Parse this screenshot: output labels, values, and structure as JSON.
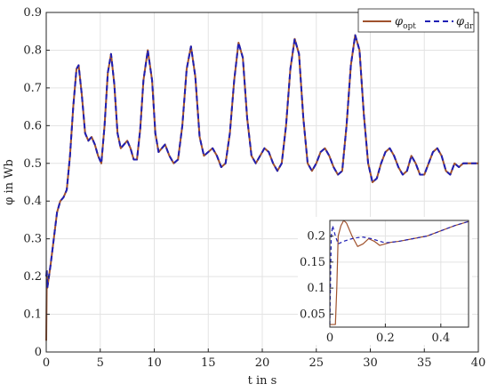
{
  "chart_data": [
    {
      "type": "line",
      "title": "",
      "xlabel": "t in s",
      "ylabel": "φ in Wb",
      "xlim": [
        0,
        40
      ],
      "ylim": [
        0,
        0.9
      ],
      "xticks": [
        "0",
        "5",
        "10",
        "15",
        "20",
        "25",
        "30",
        "35",
        "40"
      ],
      "yticks": [
        "0",
        "0.1",
        "0.2",
        "0.3",
        "0.4",
        "0.5",
        "0.6",
        "0.7",
        "0.8",
        "0.9"
      ],
      "grid": true,
      "legend_position": "top-right",
      "legend": [
        {
          "symbol": "φ",
          "subscript": "opt",
          "style": "solid",
          "color": "#A0522D"
        },
        {
          "symbol": "φ",
          "subscript": "dr",
          "style": "dashed",
          "color": "#1F1FB4"
        }
      ],
      "series": [
        {
          "style": "solid",
          "color": "#A0522D",
          "x": [
            0,
            0.05,
            0.1,
            0.2,
            0.4,
            0.7,
            1.0,
            1.3,
            1.6,
            1.9,
            2.2,
            2.5,
            2.8,
            3.0,
            3.3,
            3.6,
            3.9,
            4.2,
            4.5,
            4.8,
            5.1,
            5.4,
            5.7,
            6.0,
            6.3,
            6.6,
            6.9,
            7.2,
            7.5,
            7.8,
            8.1,
            8.4,
            8.7,
            9.0,
            9.4,
            9.8,
            10.1,
            10.4,
            10.7,
            11.0,
            11.4,
            11.8,
            12.2,
            12.6,
            13.0,
            13.4,
            13.8,
            14.2,
            14.6,
            15.0,
            15.4,
            15.8,
            16.2,
            16.6,
            17.0,
            17.4,
            17.8,
            18.2,
            18.6,
            19.0,
            19.4,
            19.8,
            20.2,
            20.6,
            21.0,
            21.4,
            21.8,
            22.2,
            22.6,
            23.0,
            23.4,
            23.8,
            24.2,
            24.6,
            25.0,
            25.4,
            25.8,
            26.2,
            26.6,
            27.0,
            27.4,
            27.8,
            28.2,
            28.6,
            29.0,
            29.4,
            29.8,
            30.2,
            30.6,
            31.0,
            31.4,
            31.8,
            32.2,
            32.6,
            33.0,
            33.4,
            33.8,
            34.2,
            34.6,
            35.0,
            35.4,
            35.8,
            36.2,
            36.6,
            37.0,
            37.4,
            37.8,
            38.2,
            38.6,
            39.0,
            39.4,
            39.8,
            40.0
          ],
          "y": [
            0.03,
            0.2,
            0.17,
            0.19,
            0.23,
            0.3,
            0.37,
            0.4,
            0.41,
            0.43,
            0.52,
            0.65,
            0.75,
            0.76,
            0.68,
            0.58,
            0.56,
            0.57,
            0.55,
            0.52,
            0.5,
            0.6,
            0.74,
            0.79,
            0.71,
            0.58,
            0.54,
            0.55,
            0.56,
            0.54,
            0.51,
            0.51,
            0.59,
            0.72,
            0.8,
            0.72,
            0.58,
            0.53,
            0.54,
            0.55,
            0.52,
            0.5,
            0.51,
            0.6,
            0.75,
            0.81,
            0.73,
            0.57,
            0.52,
            0.53,
            0.54,
            0.52,
            0.49,
            0.5,
            0.58,
            0.72,
            0.82,
            0.78,
            0.62,
            0.52,
            0.5,
            0.52,
            0.54,
            0.53,
            0.5,
            0.48,
            0.5,
            0.6,
            0.75,
            0.83,
            0.79,
            0.62,
            0.5,
            0.48,
            0.5,
            0.53,
            0.54,
            0.52,
            0.49,
            0.47,
            0.48,
            0.6,
            0.76,
            0.84,
            0.8,
            0.63,
            0.5,
            0.45,
            0.46,
            0.5,
            0.53,
            0.54,
            0.52,
            0.49,
            0.47,
            0.48,
            0.52,
            0.5,
            0.47,
            0.47,
            0.5,
            0.53,
            0.54,
            0.52,
            0.48,
            0.47,
            0.5,
            0.49,
            0.5,
            0.5,
            0.5,
            0.5,
            0.5
          ]
        },
        {
          "style": "dashed",
          "color": "#1F1FB4",
          "x": [
            0,
            0.05,
            0.1,
            0.2,
            0.4,
            0.7,
            1.0,
            1.3,
            1.6,
            1.9,
            2.2,
            2.5,
            2.8,
            3.0,
            3.3,
            3.6,
            3.9,
            4.2,
            4.5,
            4.8,
            5.1,
            5.4,
            5.7,
            6.0,
            6.3,
            6.6,
            6.9,
            7.2,
            7.5,
            7.8,
            8.1,
            8.4,
            8.7,
            9.0,
            9.4,
            9.8,
            10.1,
            10.4,
            10.7,
            11.0,
            11.4,
            11.8,
            12.2,
            12.6,
            13.0,
            13.4,
            13.8,
            14.2,
            14.6,
            15.0,
            15.4,
            15.8,
            16.2,
            16.6,
            17.0,
            17.4,
            17.8,
            18.2,
            18.6,
            19.0,
            19.4,
            19.8,
            20.2,
            20.6,
            21.0,
            21.4,
            21.8,
            22.2,
            22.6,
            23.0,
            23.4,
            23.8,
            24.2,
            24.6,
            25.0,
            25.4,
            25.8,
            26.2,
            26.6,
            27.0,
            27.4,
            27.8,
            28.2,
            28.6,
            29.0,
            29.4,
            29.8,
            30.2,
            30.6,
            31.0,
            31.4,
            31.8,
            32.2,
            32.6,
            33.0,
            33.4,
            33.8,
            34.2,
            34.6,
            35.0,
            35.4,
            35.8,
            36.2,
            36.6,
            37.0,
            37.4,
            37.8,
            38.2,
            38.6,
            39.0,
            39.4,
            39.8,
            40.0
          ],
          "y": [
            0.2,
            0.22,
            0.17,
            0.19,
            0.23,
            0.3,
            0.37,
            0.4,
            0.41,
            0.43,
            0.52,
            0.65,
            0.75,
            0.76,
            0.68,
            0.58,
            0.56,
            0.57,
            0.55,
            0.52,
            0.5,
            0.6,
            0.74,
            0.79,
            0.71,
            0.58,
            0.54,
            0.55,
            0.56,
            0.54,
            0.51,
            0.51,
            0.59,
            0.72,
            0.8,
            0.72,
            0.58,
            0.53,
            0.54,
            0.55,
            0.52,
            0.5,
            0.51,
            0.6,
            0.75,
            0.81,
            0.73,
            0.57,
            0.52,
            0.53,
            0.54,
            0.52,
            0.49,
            0.5,
            0.58,
            0.72,
            0.82,
            0.78,
            0.62,
            0.52,
            0.5,
            0.52,
            0.54,
            0.53,
            0.5,
            0.48,
            0.5,
            0.6,
            0.75,
            0.83,
            0.79,
            0.62,
            0.5,
            0.48,
            0.5,
            0.53,
            0.54,
            0.52,
            0.49,
            0.47,
            0.48,
            0.6,
            0.76,
            0.84,
            0.8,
            0.63,
            0.5,
            0.45,
            0.46,
            0.5,
            0.53,
            0.54,
            0.52,
            0.49,
            0.47,
            0.48,
            0.52,
            0.5,
            0.47,
            0.47,
            0.5,
            0.53,
            0.54,
            0.52,
            0.48,
            0.47,
            0.5,
            0.49,
            0.5,
            0.5,
            0.5,
            0.5,
            0.5
          ]
        }
      ]
    },
    {
      "type": "line",
      "title": "",
      "xlabel": "",
      "ylabel": "",
      "xlim": [
        0,
        0.5
      ],
      "ylim": [
        0.025,
        0.23
      ],
      "xticks": [
        "0",
        "0.2",
        "0.4"
      ],
      "yticks": [
        "0.05",
        "0.1",
        "0.15",
        "0.2"
      ],
      "grid": true,
      "series": [
        {
          "style": "solid",
          "color": "#A0522D",
          "x": [
            0.0,
            0.02,
            0.025,
            0.03,
            0.04,
            0.05,
            0.06,
            0.08,
            0.1,
            0.12,
            0.14,
            0.16,
            0.18,
            0.2,
            0.22,
            0.25,
            0.3,
            0.35,
            0.4,
            0.45,
            0.5
          ],
          "y": [
            0.03,
            0.03,
            0.1,
            0.2,
            0.22,
            0.23,
            0.225,
            0.2,
            0.18,
            0.185,
            0.195,
            0.19,
            0.182,
            0.185,
            0.188,
            0.19,
            0.195,
            0.2,
            0.21,
            0.22,
            0.228
          ]
        },
        {
          "style": "dashed",
          "color": "#1F1FB4",
          "x": [
            0.0,
            0.005,
            0.01,
            0.02,
            0.03,
            0.05,
            0.08,
            0.1,
            0.12,
            0.15,
            0.18,
            0.2,
            0.22,
            0.25,
            0.3,
            0.35,
            0.4,
            0.45,
            0.5
          ],
          "y": [
            0.03,
            0.2,
            0.22,
            0.2,
            0.185,
            0.19,
            0.195,
            0.197,
            0.198,
            0.195,
            0.19,
            0.187,
            0.188,
            0.19,
            0.195,
            0.2,
            0.21,
            0.22,
            0.228
          ]
        }
      ]
    }
  ]
}
